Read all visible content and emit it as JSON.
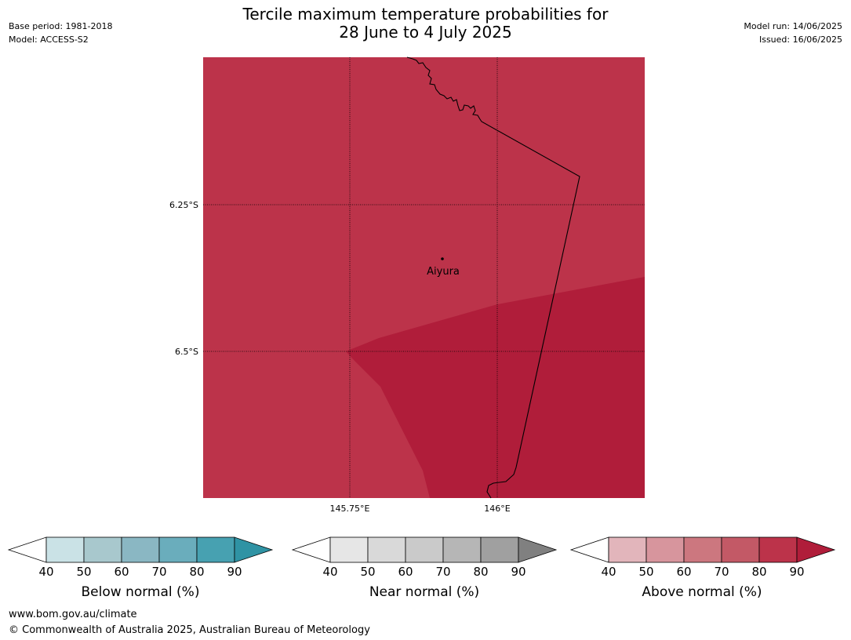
{
  "header": {
    "title_line1": "Tercile maximum temperature probabilities for",
    "title_line2": "28 June to 4 July 2025",
    "base_period": "Base period: 1981-2018",
    "model": "Model: ACCESS-S2",
    "model_run": "Model run: 14/06/2025",
    "issued": "Issued: 16/06/2025"
  },
  "map": {
    "lat_labels": [
      "6.25°S",
      "6.5°S"
    ],
    "lon_labels": [
      "145.75°E",
      "146°E"
    ],
    "place_label": "Aiyura",
    "fill_colors": {
      "above_80": "#bc334a",
      "above_90": "#b01d3a"
    }
  },
  "legends": [
    {
      "label": "Below normal (%)",
      "ticks": [
        "40",
        "50",
        "60",
        "70",
        "80",
        "90"
      ],
      "colors": [
        "#ffffff",
        "#cae2e6",
        "#a8c8cd",
        "#8ab7c3",
        "#6aadbc",
        "#47a1b1",
        "#2f93a4"
      ]
    },
    {
      "label": "Near normal (%)",
      "ticks": [
        "40",
        "50",
        "60",
        "70",
        "80",
        "90"
      ],
      "colors": [
        "#ffffff",
        "#e6e6e6",
        "#d9d9d9",
        "#cacaca",
        "#b6b6b6",
        "#a0a0a0",
        "#808080"
      ]
    },
    {
      "label": "Above normal (%)",
      "ticks": [
        "40",
        "50",
        "60",
        "70",
        "80",
        "90"
      ],
      "colors": [
        "#ffffff",
        "#e2b5bb",
        "#d7959d",
        "#cc777f",
        "#c35966",
        "#bc334a",
        "#b01d3a"
      ]
    }
  ],
  "footer": {
    "url": "www.bom.gov.au/climate",
    "copyright": "© Commonwealth of Australia 2025, Australian Bureau of Meteorology"
  }
}
